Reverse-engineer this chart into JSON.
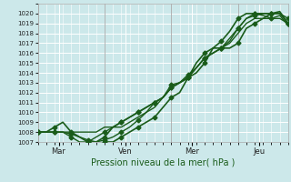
{
  "xlabel": "Pression niveau de la mer( hPa )",
  "bg_color": "#cce8ea",
  "grid_color": "#ffffff",
  "line_color": "#1a5c1a",
  "ylim": [
    1007,
    1021
  ],
  "yticks": [
    1007,
    1008,
    1009,
    1010,
    1011,
    1012,
    1013,
    1014,
    1015,
    1016,
    1017,
    1018,
    1019,
    1020
  ],
  "xlim": [
    0,
    180
  ],
  "day_labels": [
    "Mar",
    "Ven",
    "Mer",
    "Jeu"
  ],
  "day_positions": [
    15,
    63,
    111,
    159
  ],
  "vline_positions": [
    0,
    48,
    96,
    144,
    180
  ],
  "series": [
    {
      "x": [
        0,
        6,
        12,
        18,
        24,
        30,
        36,
        42,
        48,
        54,
        60,
        66,
        72,
        78,
        84,
        90,
        96,
        102,
        108,
        114,
        120,
        126,
        132,
        138,
        144,
        150,
        156,
        162,
        168,
        174,
        180
      ],
      "y": [
        1008,
        1008,
        1008.5,
        1009,
        1008,
        1007.5,
        1007,
        1007,
        1007.5,
        1008.5,
        1009,
        1009.5,
        1010,
        1010.5,
        1011,
        1011.5,
        1012.5,
        1013,
        1013.5,
        1014,
        1015,
        1016.5,
        1016.5,
        1016.5,
        1017,
        1018.5,
        1019,
        1019.5,
        1020,
        1020.2,
        1019
      ],
      "marker": "D",
      "markersize": 2.5,
      "linewidth": 1.2,
      "every_n": 2
    },
    {
      "x": [
        0,
        6,
        12,
        18,
        24,
        30,
        36,
        42,
        48,
        54,
        60,
        66,
        72,
        78,
        84,
        90,
        96,
        102,
        108,
        114,
        120,
        126,
        132,
        138,
        144,
        150,
        156,
        162,
        168,
        174,
        180
      ],
      "y": [
        1008,
        1008,
        1008,
        1008,
        1008,
        1008,
        1008,
        1008,
        1008.5,
        1008.5,
        1008.5,
        1009,
        1009.5,
        1010,
        1010.5,
        1011.5,
        1012.5,
        1013,
        1013.5,
        1014.5,
        1015.5,
        1016,
        1016.5,
        1017,
        1018,
        1019,
        1019.5,
        1019.5,
        1019.5,
        1019.8,
        1018.8
      ],
      "marker": "",
      "markersize": 0,
      "linewidth": 1.0,
      "every_n": 1
    },
    {
      "x": [
        0,
        6,
        12,
        18,
        24,
        30,
        36,
        42,
        48,
        54,
        60,
        66,
        72,
        78,
        84,
        90,
        96,
        102,
        108,
        114,
        120,
        126,
        132,
        138,
        144,
        150,
        156,
        162,
        168,
        174,
        180
      ],
      "y": [
        1008,
        1008,
        1008,
        1008,
        1007.8,
        1007.5,
        1007.2,
        1007,
        1007.2,
        1007.5,
        1008,
        1008.5,
        1009.2,
        1010,
        1011,
        1011.5,
        1012.8,
        1013,
        1013.8,
        1014.5,
        1015.5,
        1016,
        1016.5,
        1017.2,
        1018.5,
        1019.5,
        1019.8,
        1020,
        1020,
        1020,
        1019.5
      ],
      "marker": "D",
      "markersize": 2.5,
      "linewidth": 1.0,
      "every_n": 2
    },
    {
      "x": [
        0,
        6,
        12,
        18,
        24,
        30,
        36,
        42,
        48,
        54,
        60,
        66,
        72,
        78,
        84,
        90,
        96,
        102,
        108,
        114,
        120,
        126,
        132,
        138,
        144,
        150,
        156,
        162,
        168,
        174,
        180
      ],
      "y": [
        1008,
        1008,
        1008,
        1008,
        1007.5,
        1007,
        1007,
        1007.5,
        1008,
        1008.5,
        1009,
        1009.5,
        1010,
        1010.5,
        1011,
        1011.5,
        1012.5,
        1013,
        1013.5,
        1014.5,
        1015.5,
        1016,
        1016.5,
        1017.5,
        1018.5,
        1019.5,
        1020,
        1019.8,
        1019.5,
        1019.5,
        1019
      ],
      "marker": "D",
      "markersize": 2.5,
      "linewidth": 1.0,
      "every_n": 2
    },
    {
      "x": [
        48,
        54,
        60,
        66,
        72,
        78,
        84,
        90,
        96,
        102,
        108,
        114,
        120,
        126,
        132,
        138,
        144,
        150,
        156,
        162,
        168,
        174,
        180
      ],
      "y": [
        1007,
        1007,
        1007.5,
        1008,
        1008.5,
        1009,
        1009.5,
        1010.5,
        1011.5,
        1012,
        1013.5,
        1015,
        1016,
        1016.5,
        1017.2,
        1018.2,
        1019.5,
        1020,
        1020,
        1020,
        1020,
        1020,
        1019
      ],
      "marker": "D",
      "markersize": 2.5,
      "linewidth": 1.2,
      "every_n": 2
    }
  ]
}
